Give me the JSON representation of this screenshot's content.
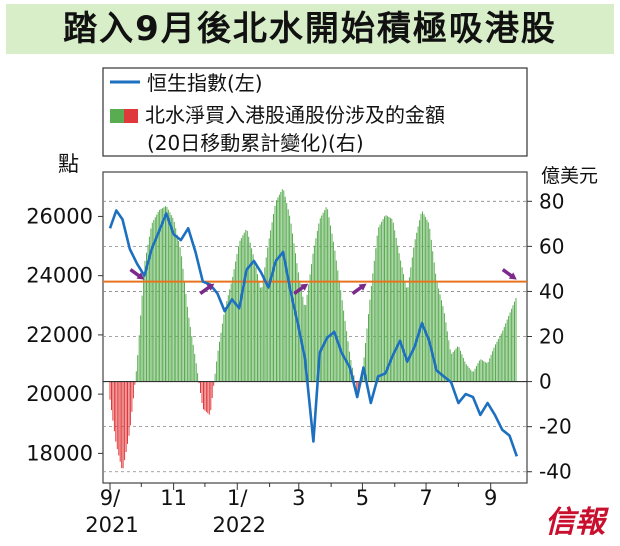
{
  "title": "踏入9月後北水開始積極吸港股",
  "legend": {
    "line_label": "恒生指數(左)",
    "bar_label_line1": "北水淨買入港股通股份涉及的金額",
    "bar_label_line2": "(20日移動累計變化)(右)"
  },
  "left_axis": {
    "unit": "點",
    "ticks": [
      "26000",
      "24000",
      "22000",
      "20000",
      "18000"
    ]
  },
  "right_axis": {
    "unit": "億美元",
    "ticks": [
      "80",
      "60",
      "40",
      "20",
      "0",
      "-20",
      "-40"
    ]
  },
  "x_ticks": [
    {
      "label": "9/",
      "sub": "2021"
    },
    {
      "label": "11",
      "sub": ""
    },
    {
      "label": "1/",
      "sub": "2022"
    },
    {
      "label": "3",
      "sub": ""
    },
    {
      "label": "5",
      "sub": ""
    },
    {
      "label": "7",
      "sub": ""
    },
    {
      "label": "9",
      "sub": ""
    }
  ],
  "logo_text": "信報",
  "colors": {
    "line": "#1d6fc0",
    "bar_pos": "#5aac52",
    "bar_neg": "#e0393b",
    "ref_line": "#e8731f",
    "arrow": "#7b2a8c",
    "title_bg": "#d7eec9"
  },
  "chart_data": {
    "type": "line+bar",
    "left_ylim": [
      17000,
      27500
    ],
    "right_ylim": [
      -45,
      93
    ],
    "x_range": [
      "2021-09-01",
      "2022-10-01"
    ],
    "reference_level_left": 23800,
    "hsi_series": {
      "name": "恒生指數(左)",
      "points": [
        [
          "2021-09-01",
          25600
        ],
        [
          "2021-09-07",
          26200
        ],
        [
          "2021-09-13",
          25900
        ],
        [
          "2021-09-20",
          24900
        ],
        [
          "2021-09-27",
          24400
        ],
        [
          "2021-10-04",
          24000
        ],
        [
          "2021-10-11",
          24900
        ],
        [
          "2021-10-18",
          25500
        ],
        [
          "2021-10-25",
          26100
        ],
        [
          "2021-11-01",
          25400
        ],
        [
          "2021-11-08",
          25200
        ],
        [
          "2021-11-15",
          25600
        ],
        [
          "2021-11-22",
          24800
        ],
        [
          "2021-11-29",
          23800
        ],
        [
          "2021-12-06",
          23700
        ],
        [
          "2021-12-13",
          23400
        ],
        [
          "2021-12-20",
          22800
        ],
        [
          "2021-12-27",
          23200
        ],
        [
          "2022-01-03",
          22900
        ],
        [
          "2022-01-10",
          24200
        ],
        [
          "2022-01-17",
          24500
        ],
        [
          "2022-01-24",
          24100
        ],
        [
          "2022-01-31",
          23600
        ],
        [
          "2022-02-07",
          24500
        ],
        [
          "2022-02-14",
          24800
        ],
        [
          "2022-02-21",
          23500
        ],
        [
          "2022-02-28",
          22400
        ],
        [
          "2022-03-07",
          21200
        ],
        [
          "2022-03-15",
          18400
        ],
        [
          "2022-03-21",
          21400
        ],
        [
          "2022-03-28",
          21900
        ],
        [
          "2022-04-04",
          22100
        ],
        [
          "2022-04-11",
          21400
        ],
        [
          "2022-04-19",
          20900
        ],
        [
          "2022-04-26",
          19900
        ],
        [
          "2022-05-02",
          20900
        ],
        [
          "2022-05-09",
          19700
        ],
        [
          "2022-05-16",
          20600
        ],
        [
          "2022-05-23",
          20700
        ],
        [
          "2022-05-30",
          21300
        ],
        [
          "2022-06-06",
          21800
        ],
        [
          "2022-06-13",
          21100
        ],
        [
          "2022-06-20",
          21600
        ],
        [
          "2022-06-27",
          22400
        ],
        [
          "2022-07-04",
          21800
        ],
        [
          "2022-07-11",
          20800
        ],
        [
          "2022-07-18",
          20600
        ],
        [
          "2022-07-25",
          20400
        ],
        [
          "2022-08-01",
          19700
        ],
        [
          "2022-08-08",
          20000
        ],
        [
          "2022-08-15",
          19900
        ],
        [
          "2022-08-22",
          19300
        ],
        [
          "2022-08-29",
          19700
        ],
        [
          "2022-09-05",
          19300
        ],
        [
          "2022-09-12",
          18800
        ],
        [
          "2022-09-19",
          18600
        ],
        [
          "2022-09-26",
          17900
        ]
      ]
    },
    "northbound_series": {
      "name": "北水淨買入港股通股份涉及的金額(20日移動累計變化)(右)",
      "points": [
        [
          "2021-09-01",
          -8
        ],
        [
          "2021-09-07",
          -28
        ],
        [
          "2021-09-13",
          -40
        ],
        [
          "2021-09-20",
          -22
        ],
        [
          "2021-09-27",
          8
        ],
        [
          "2021-10-04",
          52
        ],
        [
          "2021-10-11",
          70
        ],
        [
          "2021-10-18",
          76
        ],
        [
          "2021-10-25",
          78
        ],
        [
          "2021-11-01",
          72
        ],
        [
          "2021-11-08",
          58
        ],
        [
          "2021-11-15",
          30
        ],
        [
          "2021-11-22",
          10
        ],
        [
          "2021-11-29",
          -12
        ],
        [
          "2021-12-06",
          -15
        ],
        [
          "2021-12-13",
          12
        ],
        [
          "2021-12-20",
          32
        ],
        [
          "2021-12-27",
          45
        ],
        [
          "2022-01-03",
          62
        ],
        [
          "2022-01-10",
          68
        ],
        [
          "2022-01-17",
          55
        ],
        [
          "2022-01-24",
          40
        ],
        [
          "2022-01-31",
          62
        ],
        [
          "2022-02-07",
          80
        ],
        [
          "2022-02-14",
          86
        ],
        [
          "2022-02-21",
          72
        ],
        [
          "2022-02-28",
          50
        ],
        [
          "2022-03-07",
          32
        ],
        [
          "2022-03-15",
          58
        ],
        [
          "2022-03-21",
          72
        ],
        [
          "2022-03-28",
          78
        ],
        [
          "2022-04-04",
          60
        ],
        [
          "2022-04-11",
          38
        ],
        [
          "2022-04-19",
          12
        ],
        [
          "2022-04-26",
          -5
        ],
        [
          "2022-05-02",
          8
        ],
        [
          "2022-05-09",
          40
        ],
        [
          "2022-05-16",
          68
        ],
        [
          "2022-05-23",
          74
        ],
        [
          "2022-05-30",
          72
        ],
        [
          "2022-06-06",
          55
        ],
        [
          "2022-06-13",
          40
        ],
        [
          "2022-06-20",
          62
        ],
        [
          "2022-06-27",
          76
        ],
        [
          "2022-07-04",
          70
        ],
        [
          "2022-07-11",
          45
        ],
        [
          "2022-07-18",
          32
        ],
        [
          "2022-07-25",
          12
        ],
        [
          "2022-08-01",
          16
        ],
        [
          "2022-08-08",
          8
        ],
        [
          "2022-08-15",
          4
        ],
        [
          "2022-08-22",
          10
        ],
        [
          "2022-08-29",
          8
        ],
        [
          "2022-09-05",
          16
        ],
        [
          "2022-09-12",
          22
        ],
        [
          "2022-09-19",
          30
        ],
        [
          "2022-09-26",
          38
        ]
      ]
    }
  }
}
